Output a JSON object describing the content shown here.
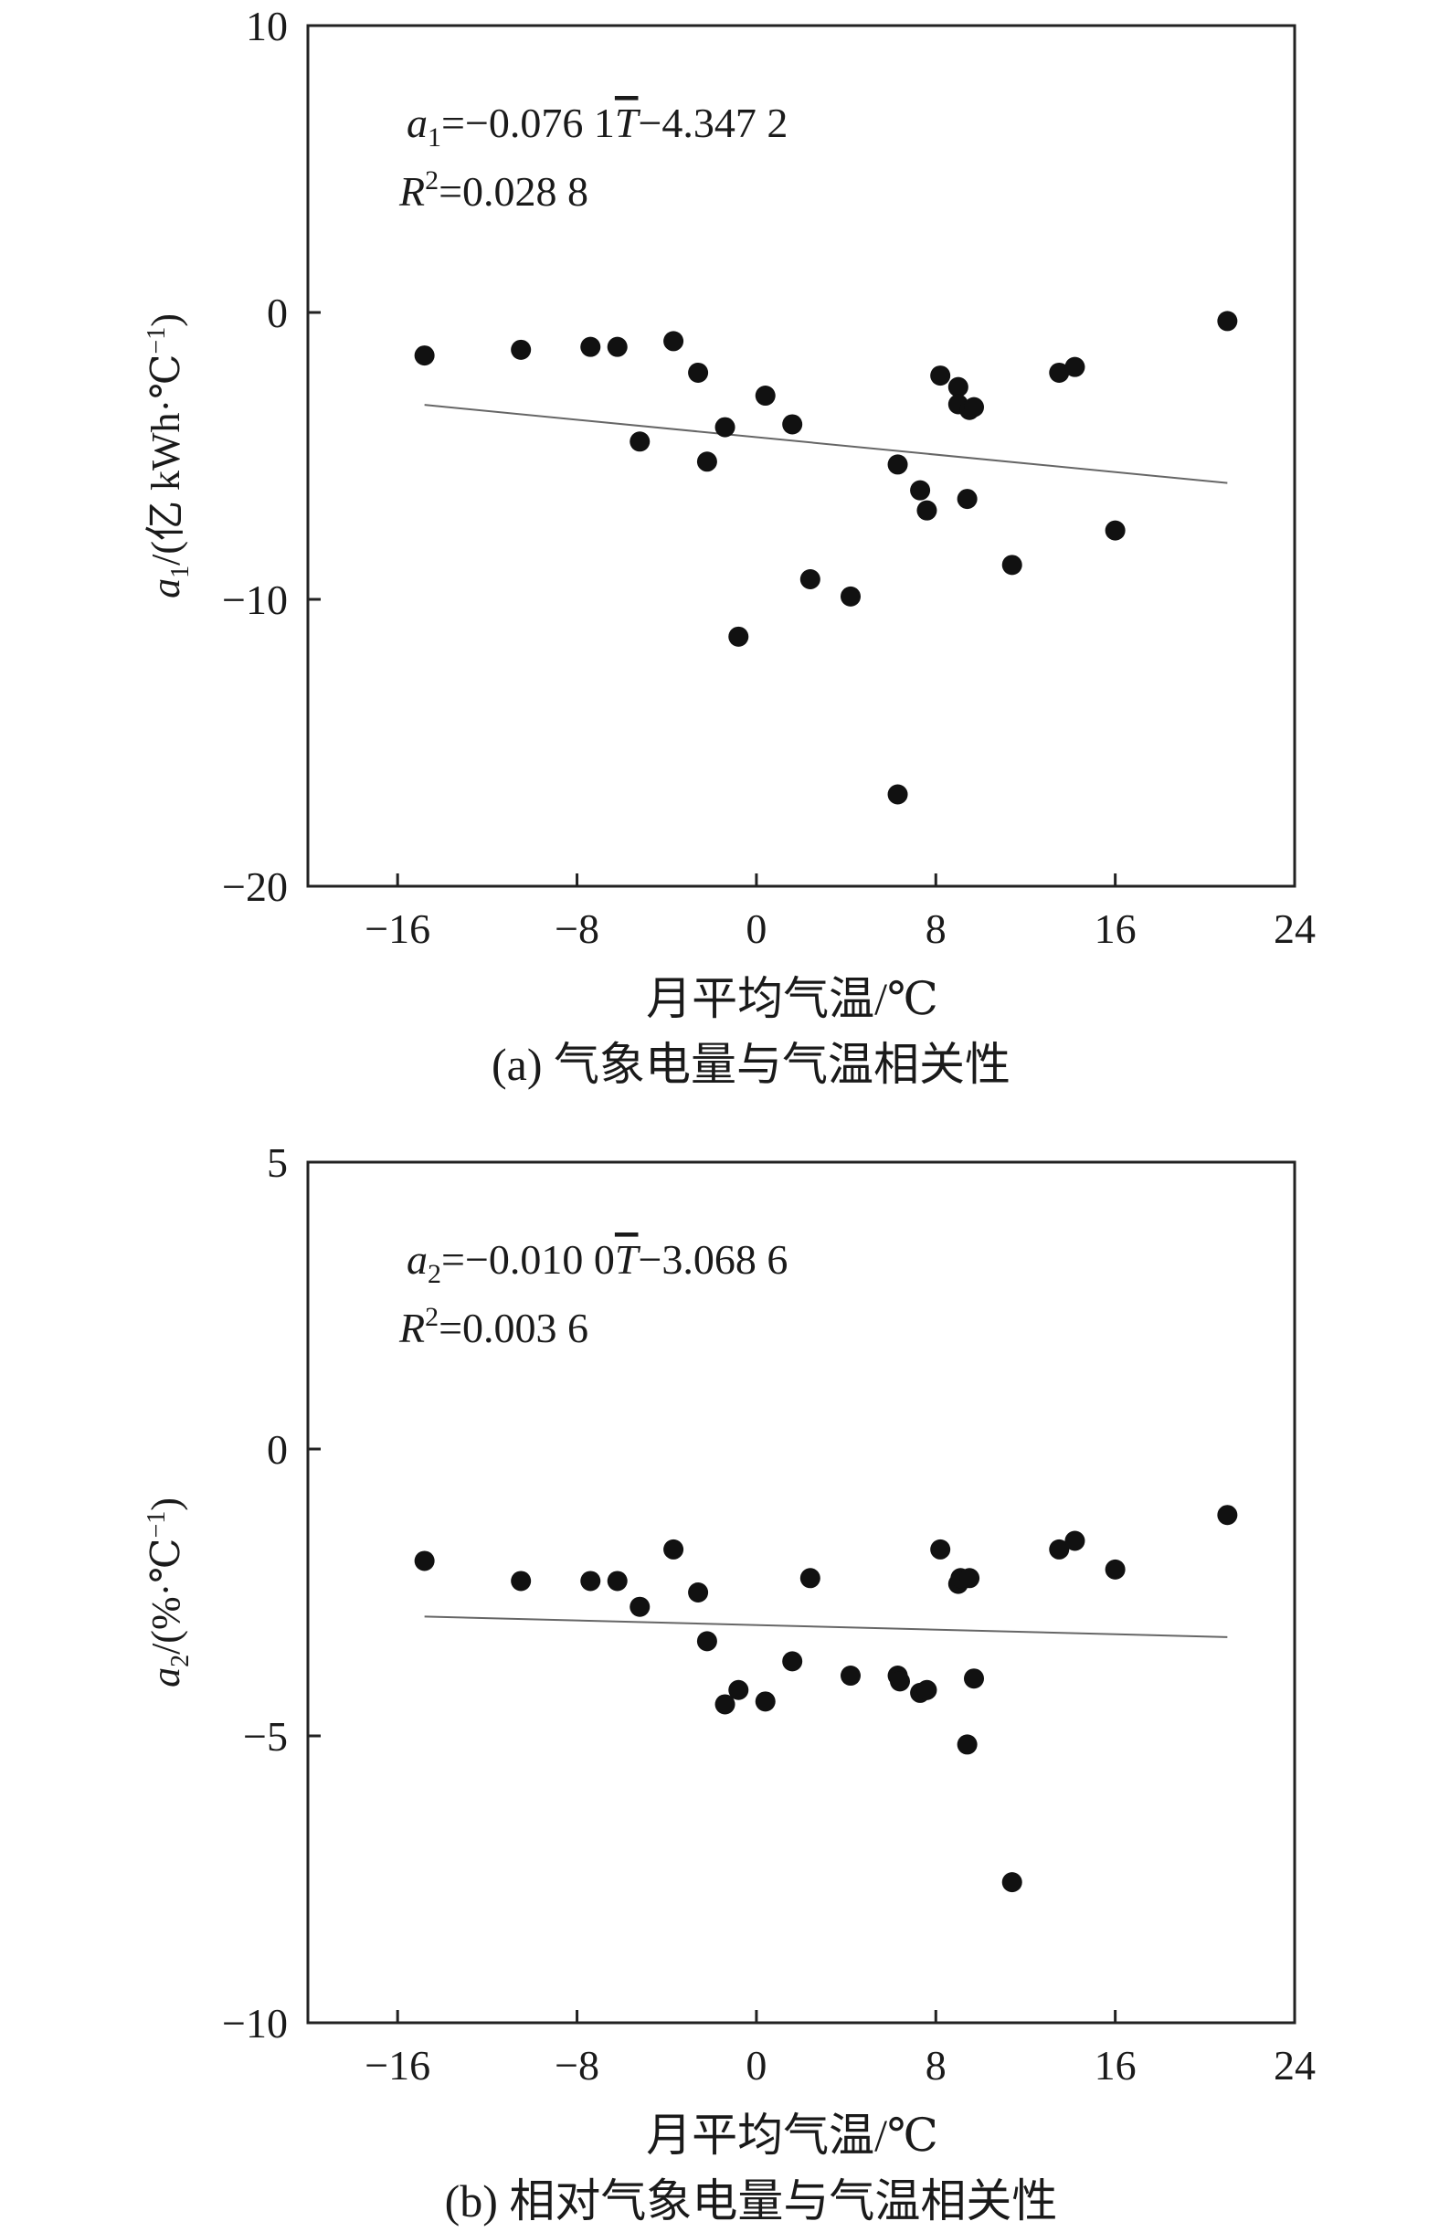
{
  "chart_data": [
    {
      "type": "scatter",
      "xlabel": "月平均气温/℃",
      "ylabel_parts": [
        "a",
        "1",
        "/(亿 kWh·℃",
        "−1",
        ")"
      ],
      "caption": "(a) 气象电量与气温相关性",
      "equation_parts": [
        "a",
        "1",
        "=−0.076 1",
        "T",
        "−4.347 2"
      ],
      "r2_parts": [
        "R",
        "2",
        "=0.028 8"
      ],
      "xlim": [
        -20,
        24
      ],
      "ylim": [
        -20,
        10
      ],
      "xticks": [
        -16,
        -8,
        0,
        8,
        16,
        24
      ],
      "xtick_labels": [
        "−16",
        "−8",
        "0",
        "8",
        "16",
        "24"
      ],
      "yticks": [
        10,
        0,
        -10,
        -20
      ],
      "ytick_labels": [
        "10",
        "0",
        "−10",
        "−20"
      ],
      "points": [
        [
          -14.8,
          -1.5
        ],
        [
          -10.5,
          -1.3
        ],
        [
          -7.4,
          -1.2
        ],
        [
          -6.2,
          -1.2
        ],
        [
          -5.2,
          -4.5
        ],
        [
          -3.7,
          -1.0
        ],
        [
          -2.6,
          -2.1
        ],
        [
          -2.2,
          -5.2
        ],
        [
          -1.4,
          -4.0
        ],
        [
          -0.8,
          -11.3
        ],
        [
          0.4,
          -2.9
        ],
        [
          1.6,
          -3.9
        ],
        [
          2.4,
          -9.3
        ],
        [
          4.2,
          -9.9
        ],
        [
          6.3,
          -5.3
        ],
        [
          6.3,
          -16.8
        ],
        [
          7.3,
          -6.2
        ],
        [
          7.6,
          -6.9
        ],
        [
          8.2,
          -2.2
        ],
        [
          9.0,
          -2.6
        ],
        [
          9.0,
          -3.2
        ],
        [
          9.5,
          -3.4
        ],
        [
          9.7,
          -3.3
        ],
        [
          9.4,
          -6.5
        ],
        [
          11.4,
          -8.8
        ],
        [
          13.5,
          -2.1
        ],
        [
          14.2,
          -1.9
        ],
        [
          16.0,
          -7.6
        ],
        [
          21.0,
          -0.3
        ]
      ],
      "fit": {
        "slope": -0.0761,
        "intercept": -4.3472,
        "x_range": [
          -14.8,
          21.0
        ]
      }
    },
    {
      "type": "scatter",
      "xlabel": "月平均气温/℃",
      "ylabel_parts": [
        "a",
        "2",
        "/(%·℃",
        "−1",
        ")"
      ],
      "caption": "(b) 相对气象电量与气温相关性",
      "equation_parts": [
        "a",
        "2",
        "=−0.010 0",
        "T",
        "−3.068 6"
      ],
      "r2_parts": [
        "R",
        "2",
        "=0.003 6"
      ],
      "xlim": [
        -20,
        24
      ],
      "ylim": [
        -10,
        5
      ],
      "xticks": [
        -16,
        -8,
        0,
        8,
        16,
        24
      ],
      "xtick_labels": [
        "−16",
        "−8",
        "0",
        "8",
        "16",
        "24"
      ],
      "yticks": [
        5,
        0,
        -5,
        -10
      ],
      "ytick_labels": [
        "5",
        "0",
        "−5",
        "−10"
      ],
      "points": [
        [
          -14.8,
          -1.95
        ],
        [
          -10.5,
          -2.3
        ],
        [
          -7.4,
          -2.3
        ],
        [
          -6.2,
          -2.3
        ],
        [
          -5.2,
          -2.75
        ],
        [
          -3.7,
          -1.75
        ],
        [
          -2.6,
          -2.5
        ],
        [
          -2.2,
          -3.35
        ],
        [
          -1.4,
          -4.45
        ],
        [
          -0.8,
          -4.2
        ],
        [
          0.4,
          -4.4
        ],
        [
          1.6,
          -3.7
        ],
        [
          2.4,
          -2.25
        ],
        [
          4.2,
          -3.95
        ],
        [
          6.3,
          -3.95
        ],
        [
          6.4,
          -4.05
        ],
        [
          7.3,
          -4.25
        ],
        [
          7.6,
          -4.2
        ],
        [
          8.2,
          -1.75
        ],
        [
          9.0,
          -2.35
        ],
        [
          9.1,
          -2.25
        ],
        [
          9.5,
          -2.25
        ],
        [
          9.4,
          -5.15
        ],
        [
          9.7,
          -4.0
        ],
        [
          11.4,
          -7.55
        ],
        [
          13.5,
          -1.75
        ],
        [
          14.2,
          -1.6
        ],
        [
          16.0,
          -2.1
        ],
        [
          21.0,
          -1.15
        ]
      ],
      "fit": {
        "slope": -0.01,
        "intercept": -3.0686,
        "x_range": [
          -14.8,
          21.0
        ]
      }
    }
  ]
}
